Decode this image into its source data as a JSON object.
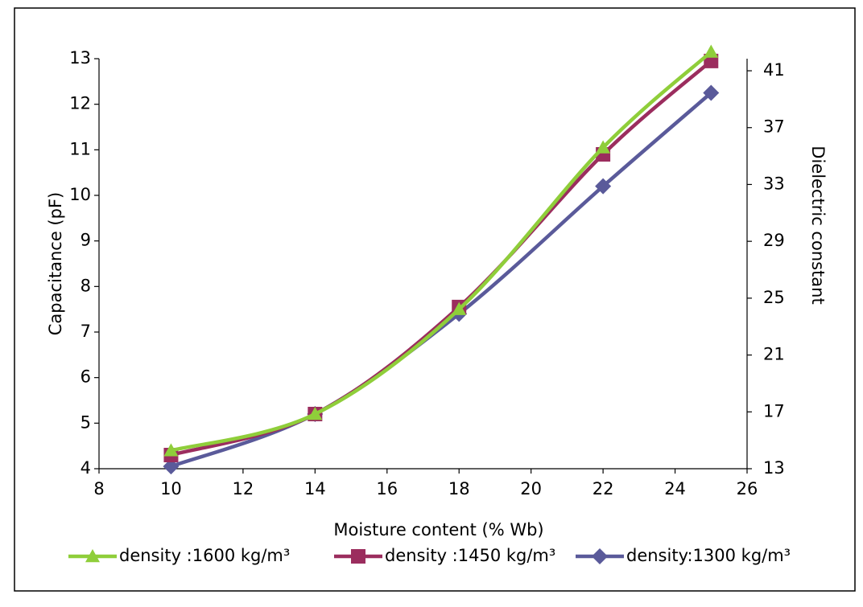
{
  "chart_data": {
    "type": "line",
    "x_label": "Moisture content (% Wb)",
    "y_label": "Capacitance (pF)",
    "y2_label": "Dielectric constant",
    "x": [
      10,
      14,
      18,
      22,
      25
    ],
    "xlim": [
      8,
      26
    ],
    "xticks": [
      8,
      10,
      12,
      14,
      16,
      18,
      20,
      22,
      24,
      26
    ],
    "ylim": [
      4,
      13
    ],
    "yticks": [
      4,
      5,
      6,
      7,
      8,
      9,
      10,
      11,
      12,
      13
    ],
    "y2lim": [
      13,
      41.85
    ],
    "y2ticks": [
      13,
      17,
      21,
      25,
      29,
      33,
      37,
      41
    ],
    "series": [
      {
        "name": "density :1600 kg/m³",
        "color": "#8fce3a",
        "marker": "triangle",
        "values": [
          4.4,
          5.2,
          7.5,
          11.05,
          13.15
        ]
      },
      {
        "name": "density :1450 kg/m³",
        "color": "#9b2d5e",
        "marker": "square",
        "values": [
          4.3,
          5.2,
          7.55,
          10.9,
          12.95
        ]
      },
      {
        "name": "density:1300 kg/m³",
        "color": "#5a5a9a",
        "marker": "diamond",
        "values": [
          4.05,
          5.2,
          7.4,
          10.2,
          12.25
        ]
      }
    ]
  }
}
